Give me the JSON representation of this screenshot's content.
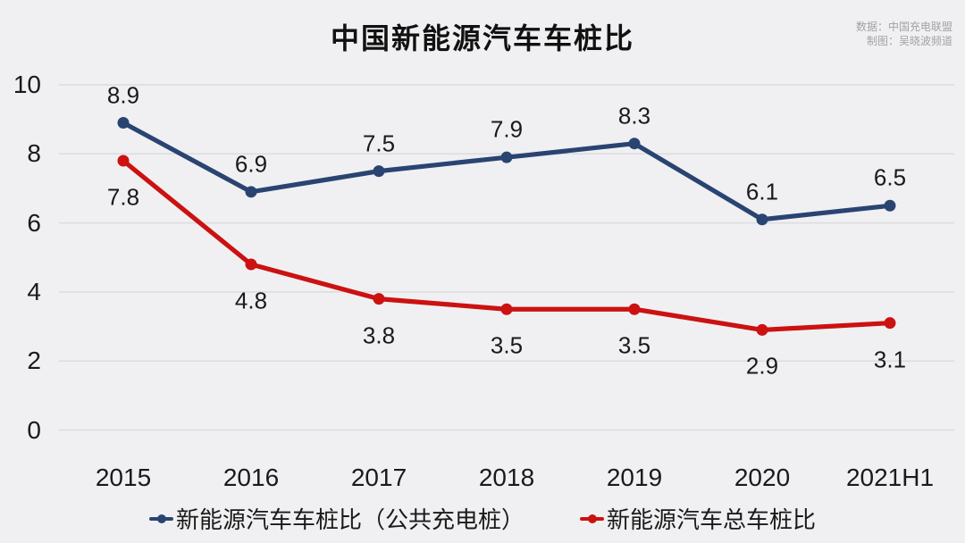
{
  "title": "中国新能源汽车车桩比",
  "source": {
    "line1": "数据：中国充电联盟",
    "line2": "制图：吴晓波频道"
  },
  "colors": {
    "background": "#f0f0f2",
    "grid": "#dcdcde",
    "text": "#1a1a1a",
    "source_text": "#a2a2a2",
    "series_blue": "#2a4472",
    "series_red": "#cc1111"
  },
  "chart_data": {
    "type": "line",
    "categories": [
      "2015",
      "2016",
      "2017",
      "2018",
      "2019",
      "2020",
      "2021H1"
    ],
    "series": [
      {
        "name": "新能源汽车车桩比（公共充电桩）",
        "color": "#2a4472",
        "values": [
          8.9,
          6.9,
          7.5,
          7.9,
          8.3,
          6.1,
          6.5
        ],
        "label_side": "above"
      },
      {
        "name": "新能源汽车总车桩比",
        "color": "#cc1111",
        "values": [
          7.8,
          4.8,
          3.8,
          3.5,
          3.5,
          2.9,
          3.1
        ],
        "label_side": "below"
      }
    ],
    "title": "中国新能源汽车车桩比",
    "xlabel": "",
    "ylabel": "",
    "ylim": [
      0,
      10
    ],
    "yticks": [
      0,
      2,
      4,
      6,
      8,
      10
    ],
    "grid": "horizontal",
    "legend_position": "bottom",
    "marker": "circle"
  }
}
